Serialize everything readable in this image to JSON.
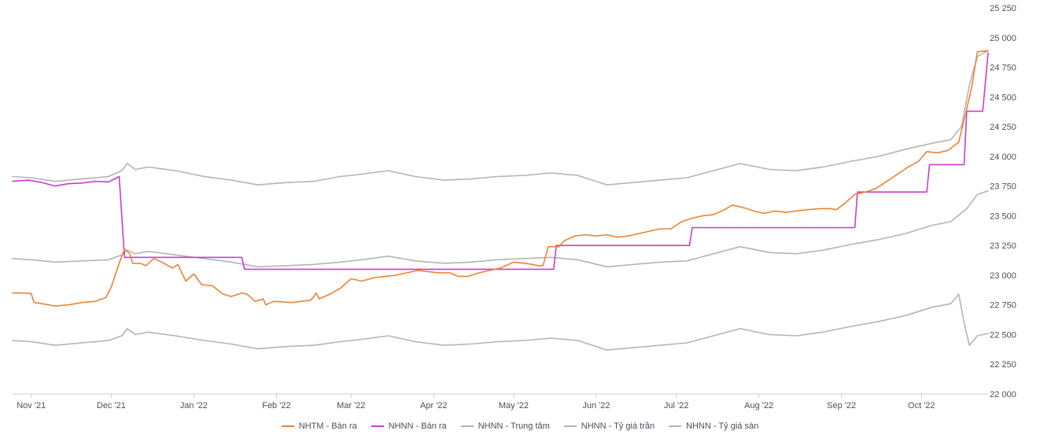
{
  "chart_data": {
    "type": "line",
    "x_axis": {
      "ticks": [
        "Nov '21",
        "Dec '21",
        "Jan '22",
        "Feb '22",
        "Mar '22",
        "Apr '22",
        "May '22",
        "Jun '22",
        "Jul '22",
        "Aug '22",
        "Sep '22",
        "Oct '22"
      ]
    },
    "y_axis": {
      "range": [
        22000,
        25250
      ],
      "ticks": [
        "22 000",
        "22 250",
        "22 500",
        "22 750",
        "23 000",
        "23 250",
        "23 500",
        "23 750",
        "24 000",
        "24 250",
        "24 500",
        "24 750",
        "25 000",
        "25 250"
      ],
      "position": "right"
    },
    "legend_position": "bottom-center",
    "series": [
      {
        "name": "NHTM - Bán ra",
        "color": "#ee8332",
        "points": [
          [
            "2021-10-25",
            22850
          ],
          [
            "2021-10-28",
            22850
          ],
          [
            "2021-11-01",
            22845
          ],
          [
            "2021-11-02",
            22770
          ],
          [
            "2021-11-05",
            22760
          ],
          [
            "2021-11-10",
            22740
          ],
          [
            "2021-11-15",
            22750
          ],
          [
            "2021-11-20",
            22770
          ],
          [
            "2021-11-25",
            22780
          ],
          [
            "2021-11-29",
            22810
          ],
          [
            "2021-12-01",
            22900
          ],
          [
            "2021-12-04",
            23100
          ],
          [
            "2021-12-06",
            23220
          ],
          [
            "2021-12-08",
            23180
          ],
          [
            "2021-12-09",
            23100
          ],
          [
            "2021-12-12",
            23100
          ],
          [
            "2021-12-14",
            23080
          ],
          [
            "2021-12-17",
            23140
          ],
          [
            "2021-12-20",
            23110
          ],
          [
            "2021-12-24",
            23060
          ],
          [
            "2021-12-26",
            23090
          ],
          [
            "2021-12-29",
            22950
          ],
          [
            "2022-01-01",
            23010
          ],
          [
            "2022-01-04",
            22920
          ],
          [
            "2022-01-08",
            22910
          ],
          [
            "2022-01-12",
            22840
          ],
          [
            "2022-01-15",
            22820
          ],
          [
            "2022-01-19",
            22850
          ],
          [
            "2022-01-21",
            22840
          ],
          [
            "2022-01-24",
            22780
          ],
          [
            "2022-01-27",
            22800
          ],
          [
            "2022-01-28",
            22750
          ],
          [
            "2022-01-31",
            22780
          ],
          [
            "2022-02-07",
            22770
          ],
          [
            "2022-02-14",
            22790
          ],
          [
            "2022-02-16",
            22850
          ],
          [
            "2022-02-17",
            22800
          ],
          [
            "2022-02-21",
            22840
          ],
          [
            "2022-02-25",
            22890
          ],
          [
            "2022-03-01",
            22970
          ],
          [
            "2022-03-05",
            22950
          ],
          [
            "2022-03-10",
            22980
          ],
          [
            "2022-03-14",
            22990
          ],
          [
            "2022-03-18",
            23000
          ],
          [
            "2022-03-22",
            23020
          ],
          [
            "2022-03-26",
            23040
          ],
          [
            "2022-03-30",
            23030
          ],
          [
            "2022-04-03",
            23020
          ],
          [
            "2022-04-07",
            23020
          ],
          [
            "2022-04-10",
            22990
          ],
          [
            "2022-04-14",
            22990
          ],
          [
            "2022-04-18",
            23020
          ],
          [
            "2022-04-22",
            23040
          ],
          [
            "2022-04-26",
            23060
          ],
          [
            "2022-05-01",
            23110
          ],
          [
            "2022-05-05",
            23100
          ],
          [
            "2022-05-08",
            23090
          ],
          [
            "2022-05-10",
            23080
          ],
          [
            "2022-05-12",
            23080
          ],
          [
            "2022-05-14",
            23240
          ],
          [
            "2022-05-18",
            23240
          ],
          [
            "2022-05-20",
            23290
          ],
          [
            "2022-05-24",
            23330
          ],
          [
            "2022-05-28",
            23340
          ],
          [
            "2022-06-01",
            23330
          ],
          [
            "2022-06-05",
            23340
          ],
          [
            "2022-06-09",
            23320
          ],
          [
            "2022-06-13",
            23330
          ],
          [
            "2022-06-17",
            23350
          ],
          [
            "2022-06-21",
            23370
          ],
          [
            "2022-06-25",
            23390
          ],
          [
            "2022-06-29",
            23390
          ],
          [
            "2022-07-03",
            23450
          ],
          [
            "2022-07-07",
            23480
          ],
          [
            "2022-07-11",
            23500
          ],
          [
            "2022-07-15",
            23510
          ],
          [
            "2022-07-19",
            23550
          ],
          [
            "2022-07-22",
            23590
          ],
          [
            "2022-07-26",
            23570
          ],
          [
            "2022-07-30",
            23540
          ],
          [
            "2022-08-03",
            23520
          ],
          [
            "2022-08-07",
            23540
          ],
          [
            "2022-08-11",
            23530
          ],
          [
            "2022-08-15",
            23540
          ],
          [
            "2022-08-19",
            23550
          ],
          [
            "2022-08-24",
            23560
          ],
          [
            "2022-08-28",
            23560
          ],
          [
            "2022-08-30",
            23550
          ],
          [
            "2022-09-02",
            23600
          ],
          [
            "2022-09-06",
            23680
          ],
          [
            "2022-09-10",
            23700
          ],
          [
            "2022-09-14",
            23730
          ],
          [
            "2022-09-18",
            23790
          ],
          [
            "2022-09-22",
            23850
          ],
          [
            "2022-09-26",
            23910
          ],
          [
            "2022-09-30",
            23960
          ],
          [
            "2022-10-03",
            24040
          ],
          [
            "2022-10-07",
            24030
          ],
          [
            "2022-10-11",
            24050
          ],
          [
            "2022-10-15",
            24120
          ],
          [
            "2022-10-18",
            24400
          ],
          [
            "2022-10-20",
            24600
          ],
          [
            "2022-10-22",
            24880
          ],
          [
            "2022-10-26",
            24890
          ]
        ]
      },
      {
        "name": "NHNN - Bán ra",
        "color": "#c83fc8",
        "step": true,
        "points": [
          [
            "2021-10-25",
            23790
          ],
          [
            "2021-10-31",
            23800
          ],
          [
            "2021-11-05",
            23780
          ],
          [
            "2021-11-10",
            23750
          ],
          [
            "2021-11-15",
            23770
          ],
          [
            "2021-11-20",
            23775
          ],
          [
            "2021-11-25",
            23790
          ],
          [
            "2021-11-30",
            23785
          ],
          [
            "2021-12-04",
            23830
          ],
          [
            "2021-12-06",
            23150
          ],
          [
            "2022-01-19",
            23150
          ],
          [
            "2022-01-20",
            23050
          ],
          [
            "2022-05-16",
            23050
          ],
          [
            "2022-05-17",
            23250
          ],
          [
            "2022-07-06",
            23250
          ],
          [
            "2022-07-07",
            23400
          ],
          [
            "2022-09-06",
            23400
          ],
          [
            "2022-09-07",
            23700
          ],
          [
            "2022-10-03",
            23700
          ],
          [
            "2022-10-04",
            23930
          ],
          [
            "2022-10-17",
            23930
          ],
          [
            "2022-10-18",
            24380
          ],
          [
            "2022-10-24",
            24380
          ],
          [
            "2022-10-26",
            24870
          ]
        ]
      },
      {
        "name": "NHNN - Trung tâm",
        "color": "#b4b4b4",
        "points": [
          [
            "2021-10-25",
            23140
          ],
          [
            "2021-11-01",
            23130
          ],
          [
            "2021-11-10",
            23110
          ],
          [
            "2021-11-20",
            23120
          ],
          [
            "2021-11-30",
            23130
          ],
          [
            "2021-12-05",
            23170
          ],
          [
            "2021-12-07",
            23210
          ],
          [
            "2021-12-10",
            23180
          ],
          [
            "2021-12-15",
            23200
          ],
          [
            "2021-12-25",
            23170
          ],
          [
            "2022-01-05",
            23140
          ],
          [
            "2022-01-15",
            23110
          ],
          [
            "2022-01-25",
            23070
          ],
          [
            "2022-02-05",
            23080
          ],
          [
            "2022-02-15",
            23090
          ],
          [
            "2022-02-25",
            23110
          ],
          [
            "2022-03-05",
            23130
          ],
          [
            "2022-03-15",
            23160
          ],
          [
            "2022-03-25",
            23120
          ],
          [
            "2022-04-05",
            23100
          ],
          [
            "2022-04-15",
            23110
          ],
          [
            "2022-04-25",
            23130
          ],
          [
            "2022-05-05",
            23140
          ],
          [
            "2022-05-15",
            23150
          ],
          [
            "2022-05-25",
            23130
          ],
          [
            "2022-06-05",
            23070
          ],
          [
            "2022-06-15",
            23090
          ],
          [
            "2022-06-25",
            23110
          ],
          [
            "2022-07-05",
            23120
          ],
          [
            "2022-07-15",
            23180
          ],
          [
            "2022-07-25",
            23240
          ],
          [
            "2022-08-05",
            23190
          ],
          [
            "2022-08-15",
            23180
          ],
          [
            "2022-08-25",
            23210
          ],
          [
            "2022-09-05",
            23260
          ],
          [
            "2022-09-15",
            23300
          ],
          [
            "2022-09-25",
            23350
          ],
          [
            "2022-10-05",
            23420
          ],
          [
            "2022-10-12",
            23450
          ],
          [
            "2022-10-18",
            23560
          ],
          [
            "2022-10-22",
            23680
          ],
          [
            "2022-10-26",
            23710
          ]
        ]
      },
      {
        "name": "NHNN - Tỷ giá trần",
        "color": "#b4b4b4",
        "points": [
          [
            "2021-10-25",
            23830
          ],
          [
            "2021-11-01",
            23820
          ],
          [
            "2021-11-10",
            23790
          ],
          [
            "2021-11-20",
            23810
          ],
          [
            "2021-11-30",
            23830
          ],
          [
            "2021-12-05",
            23880
          ],
          [
            "2021-12-07",
            23940
          ],
          [
            "2021-12-10",
            23890
          ],
          [
            "2021-12-15",
            23910
          ],
          [
            "2021-12-25",
            23880
          ],
          [
            "2022-01-05",
            23830
          ],
          [
            "2022-01-15",
            23800
          ],
          [
            "2022-01-25",
            23760
          ],
          [
            "2022-02-05",
            23780
          ],
          [
            "2022-02-15",
            23790
          ],
          [
            "2022-02-25",
            23830
          ],
          [
            "2022-03-05",
            23850
          ],
          [
            "2022-03-15",
            23880
          ],
          [
            "2022-03-25",
            23830
          ],
          [
            "2022-04-05",
            23800
          ],
          [
            "2022-04-15",
            23810
          ],
          [
            "2022-04-25",
            23830
          ],
          [
            "2022-05-05",
            23840
          ],
          [
            "2022-05-15",
            23860
          ],
          [
            "2022-05-25",
            23840
          ],
          [
            "2022-06-05",
            23760
          ],
          [
            "2022-06-15",
            23780
          ],
          [
            "2022-06-25",
            23800
          ],
          [
            "2022-07-05",
            23820
          ],
          [
            "2022-07-15",
            23880
          ],
          [
            "2022-07-25",
            23940
          ],
          [
            "2022-08-05",
            23890
          ],
          [
            "2022-08-15",
            23880
          ],
          [
            "2022-08-25",
            23910
          ],
          [
            "2022-09-05",
            23960
          ],
          [
            "2022-09-15",
            24000
          ],
          [
            "2022-09-25",
            24060
          ],
          [
            "2022-10-05",
            24110
          ],
          [
            "2022-10-12",
            24140
          ],
          [
            "2022-10-16",
            24250
          ],
          [
            "2022-10-19",
            24600
          ],
          [
            "2022-10-22",
            24840
          ],
          [
            "2022-10-26",
            24890
          ]
        ]
      },
      {
        "name": "NHNN - Tỷ giá sàn",
        "color": "#b4b4b4",
        "points": [
          [
            "2021-10-25",
            22450
          ],
          [
            "2021-11-01",
            22440
          ],
          [
            "2021-11-10",
            22410
          ],
          [
            "2021-11-20",
            22430
          ],
          [
            "2021-11-30",
            22450
          ],
          [
            "2021-12-05",
            22490
          ],
          [
            "2021-12-07",
            22550
          ],
          [
            "2021-12-10",
            22500
          ],
          [
            "2021-12-15",
            22520
          ],
          [
            "2021-12-25",
            22490
          ],
          [
            "2022-01-05",
            22450
          ],
          [
            "2022-01-15",
            22420
          ],
          [
            "2022-01-25",
            22380
          ],
          [
            "2022-02-05",
            22400
          ],
          [
            "2022-02-15",
            22410
          ],
          [
            "2022-02-25",
            22440
          ],
          [
            "2022-03-05",
            22460
          ],
          [
            "2022-03-15",
            22490
          ],
          [
            "2022-03-25",
            22440
          ],
          [
            "2022-04-05",
            22410
          ],
          [
            "2022-04-15",
            22420
          ],
          [
            "2022-04-25",
            22440
          ],
          [
            "2022-05-05",
            22450
          ],
          [
            "2022-05-15",
            22470
          ],
          [
            "2022-05-25",
            22450
          ],
          [
            "2022-06-05",
            22370
          ],
          [
            "2022-06-15",
            22390
          ],
          [
            "2022-06-25",
            22410
          ],
          [
            "2022-07-05",
            22430
          ],
          [
            "2022-07-15",
            22490
          ],
          [
            "2022-07-25",
            22550
          ],
          [
            "2022-08-05",
            22500
          ],
          [
            "2022-08-15",
            22490
          ],
          [
            "2022-08-25",
            22520
          ],
          [
            "2022-09-05",
            22570
          ],
          [
            "2022-09-15",
            22610
          ],
          [
            "2022-09-25",
            22660
          ],
          [
            "2022-10-05",
            22730
          ],
          [
            "2022-10-12",
            22760
          ],
          [
            "2022-10-15",
            22840
          ],
          [
            "2022-10-17",
            22600
          ],
          [
            "2022-10-19",
            22410
          ],
          [
            "2022-10-22",
            22490
          ],
          [
            "2022-10-26",
            22510
          ]
        ]
      }
    ]
  }
}
